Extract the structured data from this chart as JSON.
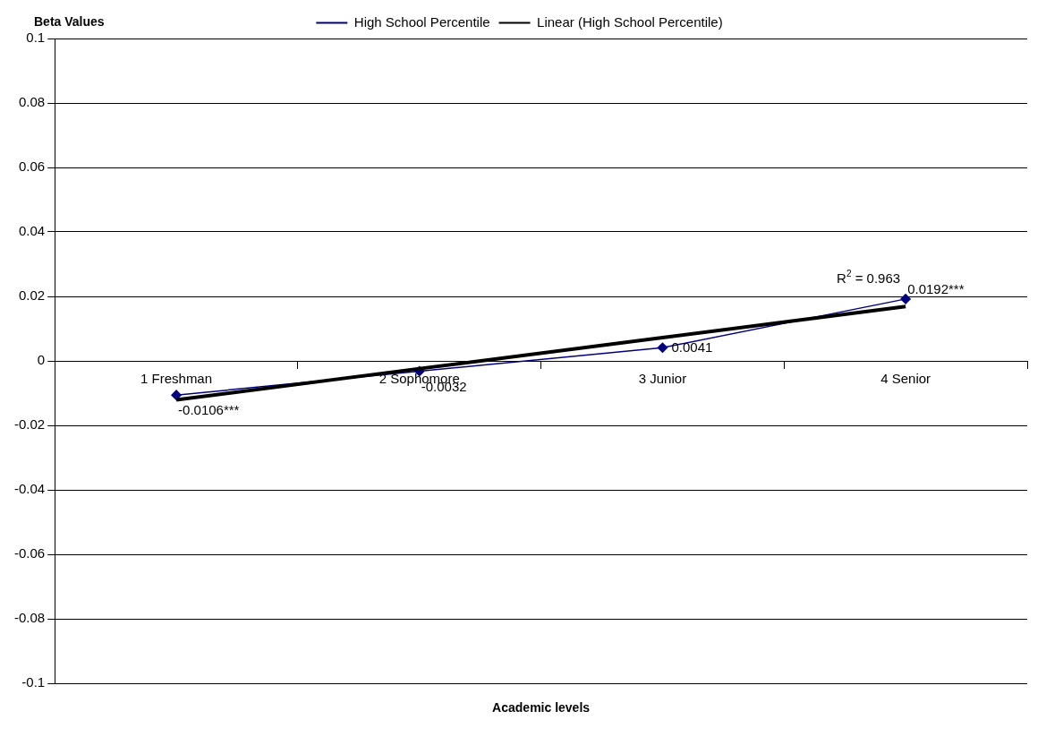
{
  "chart_data": {
    "type": "line",
    "xlabel": "Academic levels",
    "ylabel": "Beta Values",
    "categories": [
      "1 Freshman",
      "2 Sophomore",
      "3 Junior",
      "4 Senior"
    ],
    "series": [
      {
        "name": "High School Percentile",
        "color": "#000080",
        "values": [
          -0.0106,
          -0.0032,
          0.0041,
          0.0192
        ],
        "value_labels": [
          "-0.0106***",
          "-0.0032",
          "0.0041",
          "0.0192***"
        ],
        "marker": "diamond"
      },
      {
        "name": "Linear (High School Percentile)",
        "color": "#000000",
        "values": [
          -0.0121,
          -0.0024,
          0.0072,
          0.0169
        ],
        "marker": "none"
      }
    ],
    "annotations": [
      "R$^{2}$ = 0.963"
    ],
    "ylim": [
      -0.1,
      0.1
    ],
    "yticks": [
      -0.1,
      -0.08,
      -0.06,
      -0.04,
      -0.02,
      0,
      0.02,
      0.04,
      0.06,
      0.08,
      0.1
    ],
    "grid": "y",
    "legend": "top"
  }
}
